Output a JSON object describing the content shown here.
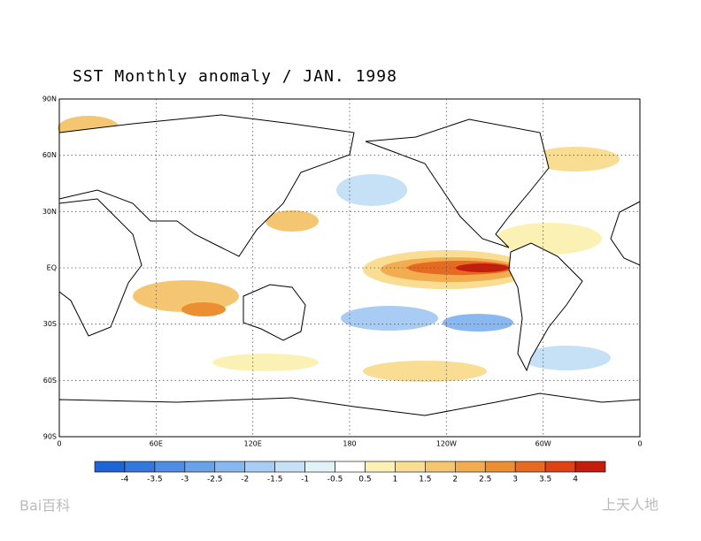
{
  "title": "SST Monthly anomaly / JAN. 1998",
  "map": {
    "lat_labels": [
      "90N",
      "60N",
      "30N",
      "EQ",
      "30S",
      "60S",
      "90S"
    ],
    "lon_labels": [
      "0",
      "60E",
      "120E",
      "180",
      "120W",
      "60W",
      "0"
    ]
  },
  "colorbar": {
    "labels": [
      -4,
      -3.5,
      -3,
      -2.5,
      -2,
      -1.5,
      -1,
      -0.5,
      0.5,
      1,
      1.5,
      2,
      2.5,
      3,
      3.5,
      4
    ],
    "colors": [
      "#1f64d4",
      "#3478dc",
      "#4f8de3",
      "#6aa2ea",
      "#88b8ef",
      "#a8ccf3",
      "#c6e0f6",
      "#e2f2f9",
      "#ffffff",
      "#fcf1b5",
      "#f8dd92",
      "#f4c672",
      "#f1ad50",
      "#ec8f32",
      "#e66a20",
      "#dd4314",
      "#c41d0d"
    ]
  },
  "watermarks": [
    "Bai百科",
    "上天人地"
  ]
}
